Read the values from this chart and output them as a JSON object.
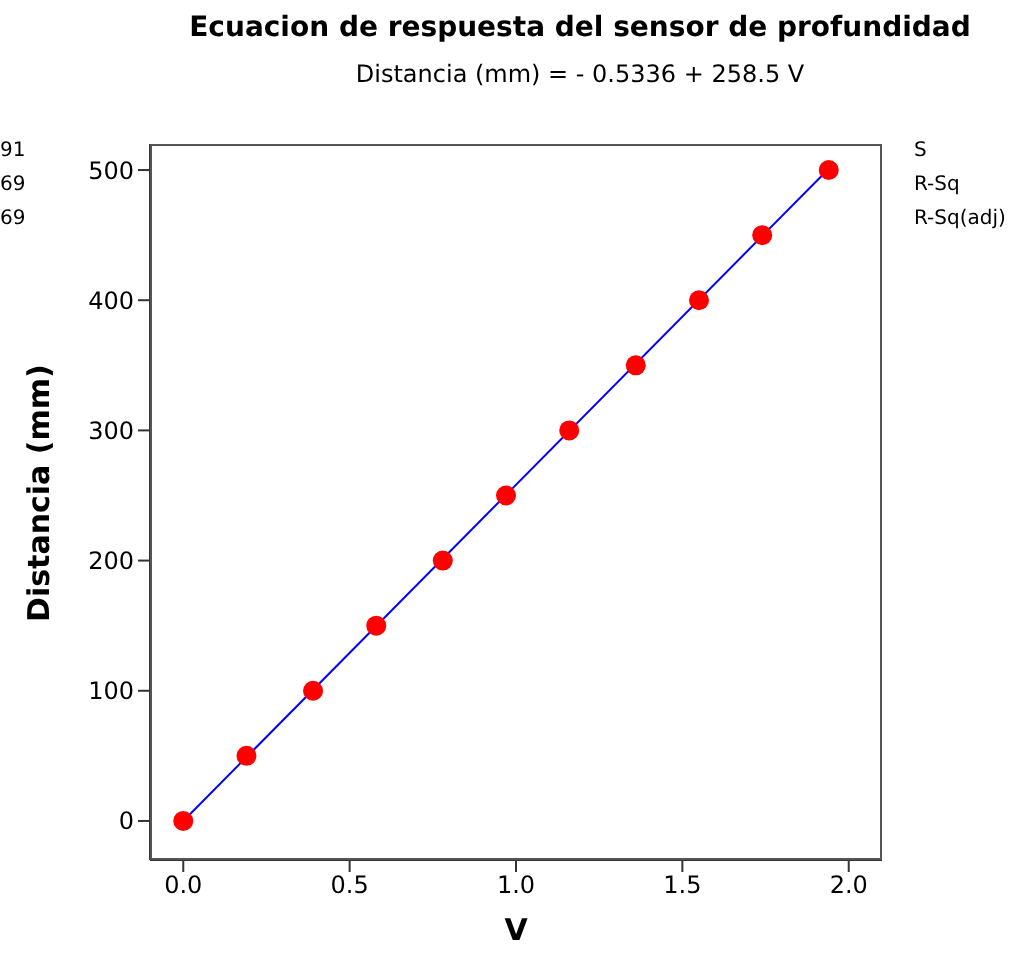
{
  "chart_data": {
    "type": "scatter",
    "title": "Ecuacion de respuesta del sensor de profundidad",
    "subtitle": "Distancia (mm) = - 0.5336 + 258.5 V",
    "xlabel": "V",
    "ylabel": "Distancia  (mm)",
    "x": [
      0.0,
      0.19,
      0.39,
      0.58,
      0.78,
      0.97,
      1.16,
      1.36,
      1.55,
      1.74,
      1.94
    ],
    "series": [
      {
        "color": "#ff0000",
        "values": [
          0,
          50,
          100,
          150,
          200,
          250,
          300,
          350,
          400,
          450,
          500
        ]
      },
      {
        "type": "line",
        "color": "#0000ff",
        "marker": "none",
        "x": [
          0.0,
          1.94
        ],
        "values": [
          0,
          501
        ]
      }
    ],
    "xlim": [
      -0.1,
      2.1
    ],
    "xticks": [
      {
        "value": 0,
        "label": "0.0"
      },
      {
        "value": 0.5,
        "label": "0.5"
      },
      {
        "value": 1,
        "label": "1.0"
      },
      {
        "value": 1.5,
        "label": "1.5"
      },
      {
        "value": 2,
        "label": "2.0"
      }
    ],
    "ylim": [
      -30,
      520
    ],
    "yticks": [
      0,
      100,
      200,
      300,
      400,
      500
    ],
    "marker": "circle",
    "grid": false,
    "legend": false,
    "annotations": [
      "S",
      "R-Sq",
      "R-Sq(adj)",
      "91",
      "69",
      "69"
    ]
  }
}
